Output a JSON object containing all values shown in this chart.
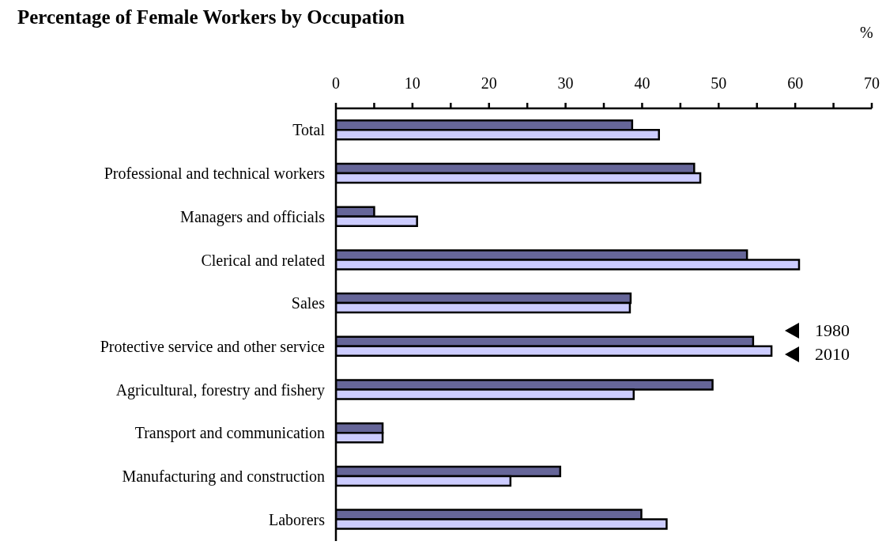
{
  "chart_data": {
    "type": "bar",
    "orientation": "horizontal",
    "title": "Percentage of Female Workers by Occupation",
    "xlabel": "%",
    "categories": [
      "Total",
      "Professional and technical workers",
      "Managers and officials",
      "Clerical and related ",
      "Sales ",
      "Protective service and other service",
      "Agricultural, forestry and fishery ",
      "Transport and communication",
      "Manufacturing and construction",
      "Laborers"
    ],
    "series": [
      {
        "name": "1980",
        "color": "#666699",
        "values": [
          38.7,
          46.8,
          5.0,
          53.7,
          38.5,
          54.5,
          49.2,
          6.1,
          29.3,
          39.9
        ]
      },
      {
        "name": "2010",
        "color": "#ccccff",
        "values": [
          42.2,
          47.6,
          10.6,
          60.5,
          38.4,
          56.9,
          38.9,
          6.1,
          22.8,
          43.2
        ]
      }
    ],
    "xlim": [
      0,
      70
    ],
    "xticks": [
      0,
      {
        "value": 5,
        "label": null
      },
      10,
      {
        "value": 15,
        "label": null
      },
      20,
      {
        "value": 25,
        "label": null
      },
      30,
      {
        "value": 35,
        "label": null
      },
      40,
      {
        "value": 45,
        "label": null
      },
      50,
      {
        "value": 55,
        "label": null
      },
      60,
      {
        "value": 65,
        "label": null
      },
      70
    ],
    "grid": false,
    "legend": "right"
  }
}
